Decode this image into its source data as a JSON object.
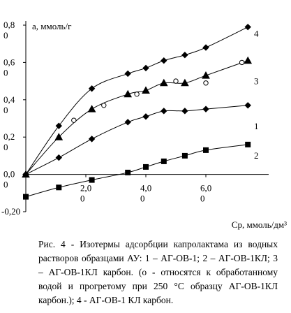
{
  "chart_data": {
    "type": "line",
    "y_label": "a, ммоль/г",
    "x_label": "Ср, ммоль/дм³",
    "caption": "Рис. 4 - Изотермы адсорбции капролактама из водных растворов образцами АУ: 1 – АГ-ОВ-1; 2 – АГ-ОВ-1КЛ; 3 – АГ-ОВ-1КЛ карбон. (о - относятся к обработанному водой и прогретому при 250 °С образцу АГ-ОВ-1КЛ карбон.); 4 - АГ-ОВ-1 КЛ карбон.",
    "xlim": [
      0,
      8
    ],
    "ylim": [
      -0.2,
      0.8
    ],
    "xticks": [
      {
        "value": 2,
        "label": "2,00"
      },
      {
        "value": 4,
        "label": "4,00"
      },
      {
        "value": 6,
        "label": "6,00"
      }
    ],
    "yticks": [
      {
        "value": -0.2,
        "label": "-0,20"
      },
      {
        "value": 0,
        "label": "0,00"
      },
      {
        "value": 0.2,
        "label": "0,20"
      },
      {
        "value": 0.4,
        "label": "0,40"
      },
      {
        "value": 0.6,
        "label": "0,60"
      },
      {
        "value": 0.8,
        "label": "0,80"
      }
    ],
    "grid": false,
    "series": [
      {
        "name": "4",
        "color": "#000000",
        "marker": "diamond",
        "line": true,
        "x": [
          0,
          1.1,
          2.2,
          3.4,
          4.0,
          4.6,
          5.3,
          6.0,
          7.4
        ],
        "values": [
          0,
          0.26,
          0.46,
          0.54,
          0.57,
          0.61,
          0.64,
          0.68,
          0.79
        ]
      },
      {
        "name": "3",
        "color": "#000000",
        "marker": "triangle",
        "line": true,
        "x": [
          0,
          1.1,
          2.2,
          3.4,
          4.0,
          4.6,
          5.3,
          6.0,
          7.4
        ],
        "values": [
          0,
          0.2,
          0.35,
          0.43,
          0.45,
          0.49,
          0.49,
          0.53,
          0.61
        ]
      },
      {
        "color": "#000000",
        "marker": "circle",
        "line": false,
        "x": [
          1.6,
          2.6,
          3.7,
          5.0,
          6.0,
          7.2
        ],
        "values": [
          0.29,
          0.37,
          0.43,
          0.5,
          0.49,
          0.6
        ]
      },
      {
        "name": "1",
        "color": "#000000",
        "marker": "diamond",
        "line": true,
        "x": [
          0,
          1.1,
          2.2,
          3.4,
          4.0,
          4.6,
          5.3,
          6.0,
          7.4
        ],
        "values": [
          0,
          0.09,
          0.19,
          0.28,
          0.31,
          0.34,
          0.34,
          0.35,
          0.37
        ]
      },
      {
        "name": "2",
        "color": "#000000",
        "marker": "square",
        "line": true,
        "x": [
          0,
          1.1,
          2.2,
          3.4,
          4.0,
          4.6,
          5.3,
          6.0,
          7.4
        ],
        "values": [
          -0.12,
          -0.07,
          -0.03,
          0.01,
          0.04,
          0.07,
          0.1,
          0.13,
          0.16
        ]
      }
    ]
  }
}
